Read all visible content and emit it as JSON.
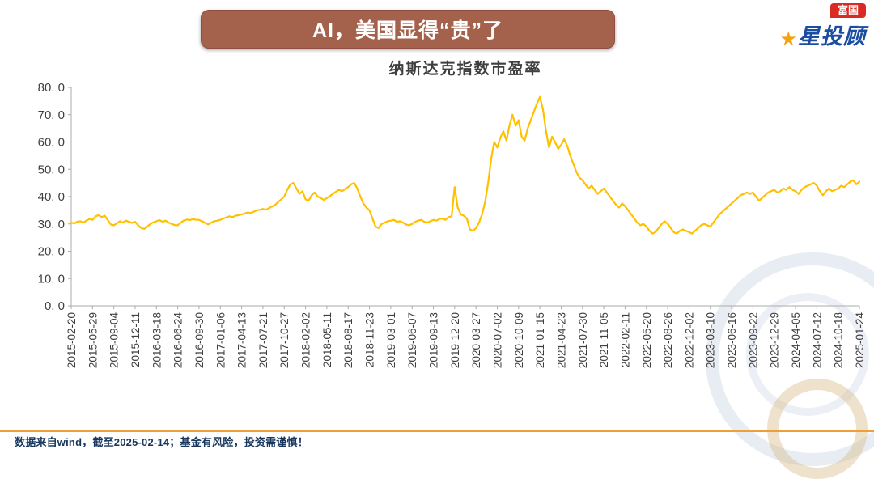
{
  "banner": {
    "title": "AI，美国显得“贵”了",
    "bg_color": "#A4614C",
    "text_color": "#FFFFFF"
  },
  "brand": {
    "tag": "富国",
    "tag_bg_color": "#D92B23",
    "star_glyph": "★",
    "star_color": "#F2A30F",
    "name": "星投顾",
    "name_color": "#1B4DA1"
  },
  "chart_data": {
    "type": "line",
    "title": "纳斯达克指数市盈率",
    "series_name": "纳斯达克指数市盈率",
    "line_color": "#FFC000",
    "axis_color": "#ABABAB",
    "label_color": "#3F3F3F",
    "grid": false,
    "legend": "none",
    "ylim": [
      0,
      80
    ],
    "y_tick_labels": [
      "0. 0",
      "10. 0",
      "20. 0",
      "30. 0",
      "40. 0",
      "50. 0",
      "60. 0",
      "70. 0",
      "80. 0"
    ],
    "x_tick_interval_points": 7,
    "x_tick_labels": [
      "2015-02-20",
      "2015-05-29",
      "2015-09-04",
      "2015-12-11",
      "2016-03-18",
      "2016-06-24",
      "2016-09-30",
      "2017-01-06",
      "2017-04-13",
      "2017-07-21",
      "2017-10-27",
      "2018-02-02",
      "2018-05-11",
      "2018-08-17",
      "2018-11-23",
      "2019-03-01",
      "2019-06-07",
      "2019-09-13",
      "2019-12-20",
      "2020-03-27",
      "2020-07-02",
      "2020-10-09",
      "2021-01-15",
      "2021-04-23",
      "2021-07-30",
      "2021-11-05",
      "2022-02-11",
      "2022-05-20",
      "2022-08-26",
      "2022-12-02",
      "2023-03-10",
      "2023-06-16",
      "2023-09-22",
      "2023-12-29",
      "2024-04-05",
      "2024-07-12",
      "2024-10-18",
      "2025-01-24"
    ],
    "values": [
      30.5,
      30.2,
      30.8,
      31.0,
      30.5,
      31.2,
      31.8,
      31.5,
      32.8,
      33.2,
      32.5,
      33.0,
      31.5,
      29.8,
      29.5,
      30.2,
      31.0,
      30.5,
      31.2,
      30.8,
      30.4,
      30.8,
      29.5,
      28.5,
      28.2,
      29.0,
      30.0,
      30.6,
      31.0,
      31.4,
      30.8,
      31.2,
      30.5,
      30.0,
      29.6,
      29.5,
      30.5,
      31.2,
      31.6,
      31.4,
      31.8,
      31.5,
      31.5,
      31.0,
      30.4,
      29.8,
      30.5,
      31.0,
      31.2,
      31.5,
      32.0,
      32.4,
      32.8,
      32.5,
      33.0,
      33.2,
      33.5,
      33.8,
      34.2,
      34.0,
      34.5,
      35.0,
      35.2,
      35.5,
      35.2,
      35.8,
      36.4,
      37.0,
      38.0,
      39.0,
      40.0,
      42.5,
      44.5,
      45.0,
      43.0,
      41.0,
      42.0,
      39.0,
      38.5,
      40.5,
      41.5,
      40.0,
      39.5,
      38.8,
      39.5,
      40.2,
      41.0,
      41.8,
      42.5,
      42.0,
      42.8,
      43.5,
      44.5,
      45.0,
      43.0,
      40.0,
      37.5,
      36.0,
      35.0,
      32.0,
      29.0,
      28.5,
      30.0,
      30.5,
      31.0,
      31.2,
      31.5,
      30.8,
      31.0,
      30.5,
      29.8,
      29.5,
      30.0,
      30.8,
      31.2,
      31.5,
      30.8,
      30.5,
      31.0,
      31.5,
      31.2,
      31.8,
      32.0,
      31.5,
      32.5,
      32.8,
      43.5,
      36.0,
      33.5,
      33.0,
      32.0,
      28.0,
      27.5,
      28.5,
      30.5,
      33.5,
      38.0,
      45.0,
      54.0,
      60.0,
      58.0,
      61.5,
      64.0,
      60.5,
      66.0,
      70.0,
      66.0,
      68.0,
      62.0,
      60.5,
      65.0,
      68.0,
      71.0,
      74.0,
      76.5,
      72.0,
      64.0,
      58.0,
      62.0,
      60.0,
      57.5,
      59.0,
      61.0,
      58.5,
      55.0,
      52.0,
      49.0,
      47.0,
      46.0,
      44.5,
      43.0,
      44.0,
      42.5,
      41.0,
      42.0,
      43.0,
      41.5,
      40.0,
      38.5,
      37.0,
      36.0,
      37.5,
      36.5,
      35.0,
      33.5,
      32.0,
      30.5,
      29.5,
      30.0,
      29.0,
      27.5,
      26.5,
      27.0,
      28.5,
      30.0,
      31.0,
      30.0,
      28.5,
      27.0,
      26.5,
      27.5,
      28.0,
      27.5,
      27.0,
      26.5,
      27.5,
      28.5,
      29.5,
      30.0,
      29.5,
      29.0,
      30.5,
      32.0,
      33.5,
      34.5,
      35.5,
      36.5,
      37.5,
      38.5,
      39.5,
      40.5,
      41.0,
      41.5,
      41.0,
      41.5,
      40.0,
      38.5,
      39.5,
      40.5,
      41.5,
      42.0,
      42.5,
      41.5,
      42.0,
      43.0,
      42.5,
      43.5,
      42.5,
      42.0,
      41.0,
      42.5,
      43.5,
      44.0,
      44.5,
      45.0,
      44.0,
      42.0,
      40.5,
      42.0,
      43.0,
      42.0,
      42.5,
      43.0,
      44.0,
      43.5,
      44.5,
      45.5,
      46.0,
      44.5,
      45.5
    ]
  },
  "footer": {
    "divider_color": "#EE9F37",
    "disclaimer": "数据来自wind，截至2025-02-14；基金有风险，投资需谨慎！"
  }
}
